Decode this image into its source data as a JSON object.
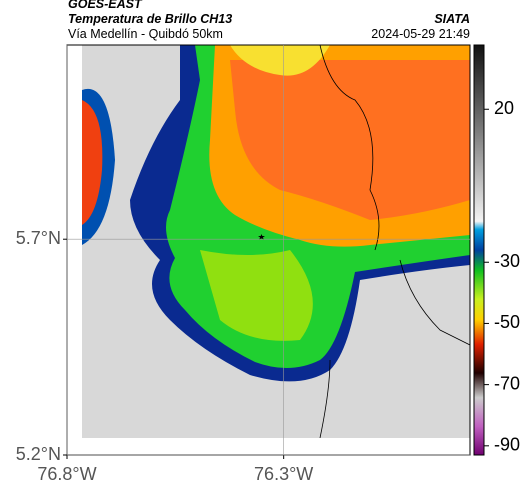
{
  "header": {
    "title": "GOES-EAST",
    "subtitle": "Temperatura de Brillo CH13",
    "location": "Vía Medellín - Quibdó 50km",
    "source": "SIATA",
    "datetime": "2024-05-29 21:49"
  },
  "map": {
    "xlim": [
      -76.8,
      -75.87
    ],
    "ylim": [
      5.2,
      6.15
    ],
    "xticks": [
      {
        "value": -76.8,
        "label": "76.8°W"
      },
      {
        "value": -76.3,
        "label": "76.3°W"
      }
    ],
    "yticks": [
      {
        "value": 5.2,
        "label": "5.2°N"
      },
      {
        "value": 5.7,
        "label": "5.7°N"
      }
    ],
    "grid": true
  },
  "colorbar": {
    "ylim": [
      -93,
      41
    ],
    "yticks": [
      20,
      -30,
      -50,
      -70,
      -90
    ]
  }
}
